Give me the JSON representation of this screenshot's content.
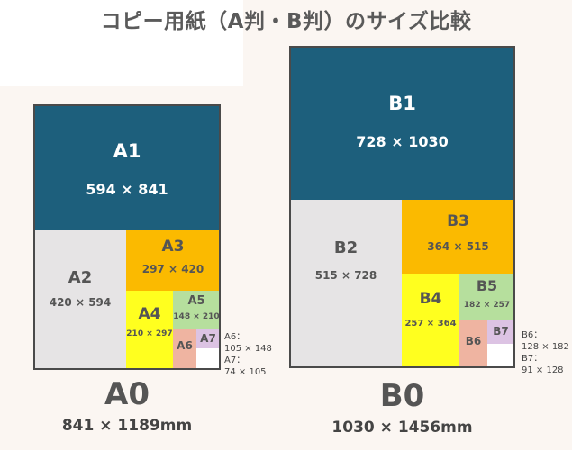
{
  "title": "コピー用紙（A判・B判）のサイズ比較",
  "colors": {
    "navy": "#1d5f7c",
    "gray": "#e6e4e5",
    "orange": "#fbba00",
    "yellow": "#ffff1f",
    "green": "#b6df9d",
    "salmon": "#efb4a1",
    "lavender": "#dcc3e3",
    "white": "#ffffff"
  },
  "a_series": {
    "name": "A0",
    "dims": "841 × 1189mm",
    "sheets": [
      {
        "name": "A1",
        "dims": "594 × 841"
      },
      {
        "name": "A2",
        "dims": "420 × 594"
      },
      {
        "name": "A3",
        "dims": "297 × 420"
      },
      {
        "name": "A4",
        "dims": "210 × 297"
      },
      {
        "name": "A5",
        "dims": "148 × 210"
      },
      {
        "name": "A6",
        "dims": ""
      },
      {
        "name": "A7",
        "dims": ""
      }
    ],
    "note_line1": "A6：",
    "note_line2": "105 × 148",
    "note_line3": "A7：",
    "note_line4": "74 × 105"
  },
  "b_series": {
    "name": "B0",
    "dims": "1030 × 1456mm",
    "sheets": [
      {
        "name": "B1",
        "dims": "728 × 1030"
      },
      {
        "name": "B2",
        "dims": "515 × 728"
      },
      {
        "name": "B3",
        "dims": "364 × 515"
      },
      {
        "name": "B4",
        "dims": "257 × 364"
      },
      {
        "name": "B5",
        "dims": "182 × 257"
      },
      {
        "name": "B6",
        "dims": ""
      },
      {
        "name": "B7",
        "dims": ""
      }
    ],
    "note_line1": "B6：",
    "note_line2": "128 × 182",
    "note_line3": "B7：",
    "note_line4": "91 × 128"
  }
}
